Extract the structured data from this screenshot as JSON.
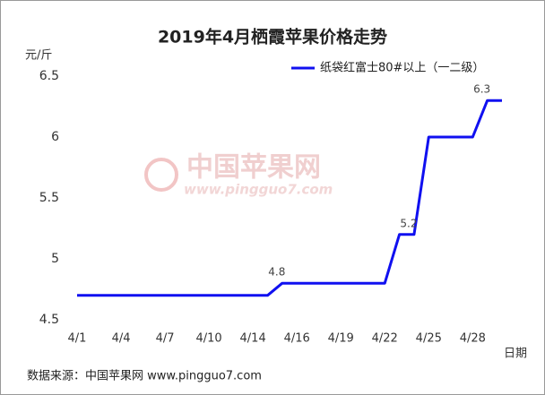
{
  "chart_data": {
    "type": "line",
    "title": "2019年4月栖霞苹果价格走势",
    "y_unit_label": "元/斤",
    "x_axis_label": "日期",
    "source": "数据来源：中国苹果网 www.pingguo7.com",
    "watermark": [
      "中国苹果网",
      "www.pingguo7.com"
    ],
    "categories": [
      "4/1",
      null,
      null,
      "4/4",
      null,
      null,
      "4/7",
      null,
      null,
      "4/10",
      null,
      null,
      "4/14",
      null,
      null,
      "4/16",
      null,
      null,
      "4/19",
      null,
      null,
      "4/22",
      null,
      null,
      "4/25",
      null,
      null,
      "4/28",
      null,
      null
    ],
    "series": [
      {
        "name": "纸袋红富士80#以上（一二级）",
        "color": "#1010f0",
        "values": [
          4.7,
          4.7,
          4.7,
          4.7,
          4.7,
          4.7,
          4.7,
          4.7,
          4.7,
          4.7,
          4.7,
          4.7,
          4.7,
          4.7,
          4.8,
          4.8,
          4.8,
          4.8,
          4.8,
          4.8,
          4.8,
          4.8,
          5.2,
          5.2,
          6,
          6,
          6,
          6,
          6.3,
          6.3
        ],
        "value_labels": [
          null,
          null,
          null,
          null,
          null,
          null,
          null,
          null,
          null,
          null,
          null,
          null,
          null,
          null,
          "4.8",
          null,
          null,
          null,
          null,
          null,
          null,
          null,
          null,
          "5.2",
          null,
          null,
          null,
          null,
          "6.3",
          null
        ]
      }
    ],
    "ylim": [
      4.5,
      6.5
    ],
    "yticks": [
      4.5,
      5,
      5.5,
      6,
      6.5
    ],
    "grid": false,
    "legend": "top-right"
  }
}
